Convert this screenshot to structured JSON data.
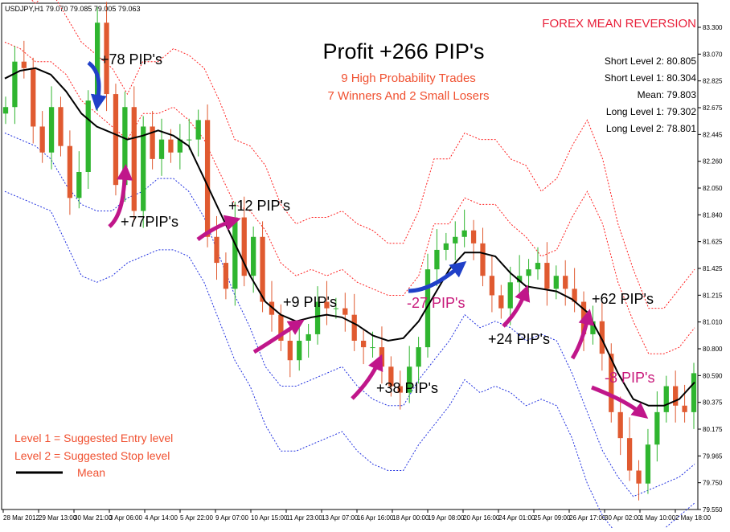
{
  "chart_data": {
    "type": "line",
    "symbol_header": "USDJPY,H1  79.070 79.085 79.005 79.063",
    "brand_title": "FOREX MEAN REVERSION",
    "headline": "Profit +266 PIP's",
    "sub_lines": [
      "9 High Probability Trades",
      "7 Winners And 2 Small Losers"
    ],
    "levels_box": [
      {
        "label": "Short Level 2",
        "value": "80.805"
      },
      {
        "label": "Short Level 1",
        "value": "80.304"
      },
      {
        "label": "Mean",
        "value": "79.803"
      },
      {
        "label": "Long Level 1",
        "value": "79.302"
      },
      {
        "label": "Long Level 2",
        "value": "78.801"
      }
    ],
    "legend": {
      "level1": "Level 1 = Suggested Entry level",
      "level2": "Level 2 = Suggested Stop level",
      "mean": "Mean"
    },
    "y_ticks": [
      "83.300",
      "83.070",
      "82.825",
      "82.675",
      "82.445",
      "82.260",
      "82.050",
      "81.840",
      "81.625",
      "81.425",
      "81.215",
      "81.010",
      "80.800",
      "80.590",
      "80.375",
      "80.175",
      "79.965",
      "79.750",
      "79.550"
    ],
    "ylim": [
      79.5,
      83.4
    ],
    "x_ticks": [
      "28 Mar 2012",
      "29 Mar 13:00",
      "30 Mar 21:00",
      "3 Apr 06:00",
      "4 Apr 14:00",
      "5 Apr 22:00",
      "9 Apr 07:00",
      "10 Apr 15:00",
      "11 Apr 23:00",
      "13 Apr 07:00",
      "16 Apr 16:00",
      "18 Apr 00:00",
      "19 Apr 08:00",
      "20 Apr 16:00",
      "24 Apr 01:00",
      "25 Apr 09:00",
      "26 Apr 17:00",
      "30 Apr 02:00",
      "1 May 10:00",
      "2 May 18:00"
    ],
    "mean_series": [
      82.82,
      82.88,
      82.9,
      82.85,
      82.72,
      82.55,
      82.45,
      82.4,
      82.35,
      82.38,
      82.42,
      82.38,
      82.3,
      82.05,
      81.8,
      81.55,
      81.3,
      81.1,
      81.0,
      80.95,
      80.98,
      81.0,
      80.98,
      80.92,
      80.84,
      80.8,
      80.82,
      80.95,
      81.15,
      81.35,
      81.48,
      81.48,
      81.45,
      81.32,
      81.22,
      81.2,
      81.18,
      81.12,
      81.02,
      80.8,
      80.55,
      80.35,
      80.3,
      80.3,
      80.35,
      80.48
    ],
    "upper2_series": [
      83.55,
      83.5,
      83.4,
      83.5,
      83.3,
      83.1,
      83.0,
      82.9,
      82.7,
      82.95,
      82.95,
      83.05,
      83.0,
      82.9,
      82.65,
      82.35,
      82.3,
      82.15,
      81.85,
      81.7,
      81.75,
      81.75,
      81.8,
      81.7,
      81.65,
      81.55,
      81.55,
      81.8,
      82.2,
      82.2,
      82.4,
      82.35,
      82.35,
      82.2,
      82.15,
      81.95,
      82.05,
      82.3,
      82.5,
      82.2,
      81.7,
      81.35,
      81.05,
      81.05,
      81.2,
      81.35
    ],
    "upper1_series": [
      83.1,
      83.05,
      82.95,
      82.95,
      82.85,
      82.65,
      82.55,
      82.45,
      82.35,
      82.55,
      82.55,
      82.6,
      82.5,
      82.35,
      82.1,
      81.85,
      81.8,
      81.65,
      81.4,
      81.3,
      81.35,
      81.3,
      81.35,
      81.25,
      81.2,
      81.15,
      81.15,
      81.3,
      81.7,
      81.7,
      81.9,
      81.85,
      81.85,
      81.7,
      81.6,
      81.45,
      81.5,
      81.75,
      81.95,
      81.7,
      81.25,
      80.95,
      80.7,
      80.7,
      80.75,
      80.9
    ],
    "lower1_series": [
      82.4,
      82.35,
      82.3,
      82.2,
      82.0,
      81.85,
      81.8,
      81.8,
      81.9,
      81.95,
      82.05,
      82.05,
      81.95,
      81.75,
      81.45,
      81.15,
      80.9,
      80.6,
      80.45,
      80.45,
      80.5,
      80.55,
      80.6,
      80.45,
      80.35,
      80.3,
      80.3,
      80.5,
      80.65,
      80.8,
      81.0,
      80.9,
      80.95,
      80.9,
      80.8,
      80.85,
      80.8,
      80.55,
      80.25,
      79.95,
      79.75,
      79.6,
      79.65,
      79.7,
      79.75,
      79.85
    ],
    "lower2_series": [
      81.95,
      81.9,
      81.85,
      81.8,
      81.55,
      81.3,
      81.25,
      81.3,
      81.4,
      81.45,
      81.5,
      81.5,
      81.45,
      81.25,
      80.95,
      80.65,
      80.45,
      80.15,
      79.95,
      79.95,
      80.0,
      80.05,
      80.1,
      79.95,
      79.85,
      79.8,
      79.8,
      80.0,
      80.15,
      80.3,
      80.5,
      80.4,
      80.45,
      80.4,
      80.3,
      80.35,
      80.3,
      80.05,
      79.7,
      79.45,
      79.3,
      79.2,
      79.25,
      79.35,
      79.45,
      79.55
    ],
    "price_series": [
      82.6,
      82.95,
      82.9,
      82.45,
      82.25,
      82.6,
      82.3,
      81.9,
      82.1,
      82.65,
      83.25,
      82.7,
      82.0,
      82.6,
      81.8,
      82.45,
      82.2,
      82.35,
      82.25,
      82.35,
      82.35,
      82.5,
      81.6,
      81.4,
      81.2,
      81.75,
      81.3,
      81.6,
      81.1,
      81.0,
      80.8,
      80.65,
      80.8,
      80.85,
      81.1,
      81.05,
      81.05,
      81.0,
      80.8,
      80.75,
      80.75,
      80.6,
      80.45,
      80.4,
      80.6,
      80.75,
      81.35,
      81.5,
      81.55,
      81.6,
      81.65,
      81.55,
      81.3,
      81.15,
      81.05,
      81.25,
      81.3,
      81.35,
      81.4,
      81.2,
      81.3,
      81.2,
      81.1,
      80.85,
      80.95,
      80.7,
      80.25,
      80.05,
      79.8,
      79.7,
      80.0,
      80.25,
      80.45,
      80.3,
      80.25,
      80.55
    ],
    "annotations": [
      {
        "text": "+78 PIP's",
        "color": "#000000"
      },
      {
        "text": "+77PIP's",
        "color": "#000000"
      },
      {
        "text": "+12 PIP's",
        "color": "#000000"
      },
      {
        "text": "+9 PIP's",
        "color": "#000000"
      },
      {
        "text": "+38 PIP's",
        "color": "#000000"
      },
      {
        "text": "-27 PIP's",
        "color": "#c8187a"
      },
      {
        "text": "+24 PIP's",
        "color": "#000000"
      },
      {
        "text": "+62 PIP's",
        "color": "#000000"
      },
      {
        "text": "-8 PIP's",
        "color": "#c8187a"
      }
    ],
    "colors": {
      "up_candle": "#2fb52f",
      "down_candle": "#e05a30",
      "mean_line": "#000000",
      "upper_band": "#ff2020",
      "lower_band": "#2030e0",
      "arrow_magenta": "#c0168a",
      "arrow_blue": "#2040c8",
      "accent_red": "#e8203a",
      "subtitle_red": "#f05030"
    }
  }
}
